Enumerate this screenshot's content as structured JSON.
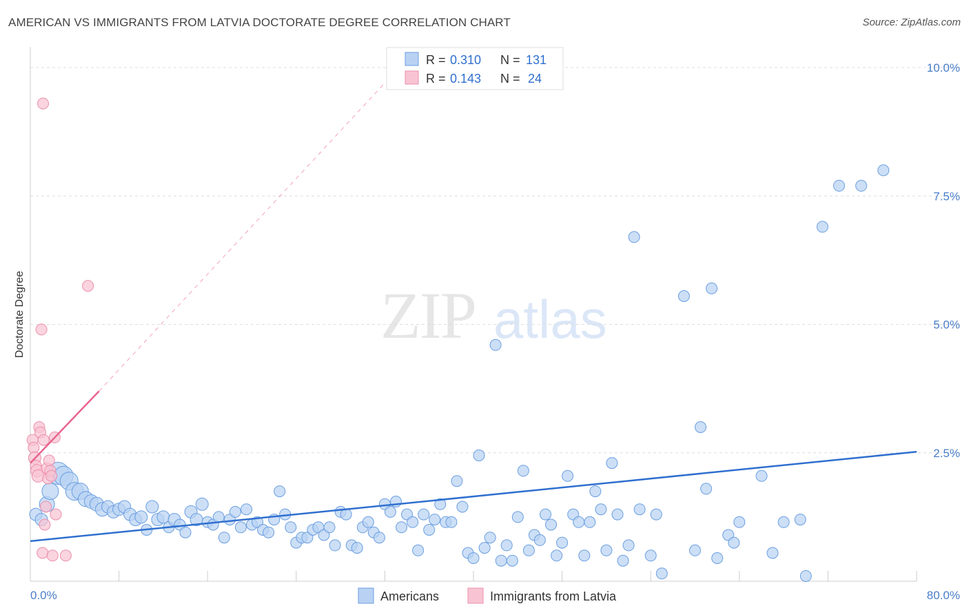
{
  "title": "AMERICAN VS IMMIGRANTS FROM LATVIA DOCTORATE DEGREE CORRELATION CHART",
  "source": "Source: ZipAtlas.com",
  "watermark": {
    "zip": "ZIP",
    "atlas": "atlas"
  },
  "colors": {
    "blue_fill": "#b9d2f3",
    "blue_stroke": "#6b9ee0",
    "blue_line": "#2f6fcf",
    "pink_fill": "#f8c4d3",
    "pink_stroke": "#ec8fab",
    "pink_line": "#e8648e",
    "grid": "#dddddd",
    "tick_text": "#4a7ec9"
  },
  "legend": {
    "rows": [
      {
        "r_label": "R =",
        "r_value": "0.310",
        "n_label": "N =",
        "n_value": "131"
      },
      {
        "r_label": "R =",
        "r_value": "0.143",
        "n_label": "N =",
        "n_value": "24"
      }
    ]
  },
  "chart_data": {
    "type": "scatter",
    "title": "AMERICAN VS IMMIGRANTS FROM LATVIA DOCTORATE DEGREE CORRELATION CHART",
    "xlabel": "",
    "ylabel": "Doctorate Degree",
    "xlim": [
      0,
      80
    ],
    "ylim": [
      0,
      10.4
    ],
    "x_tick_labels": [
      "0.0%",
      "80.0%"
    ],
    "y_ticks": [
      {
        "value": 2.5,
        "label": "2.5%"
      },
      {
        "value": 5.0,
        "label": "5.0%"
      },
      {
        "value": 7.5,
        "label": "7.5%"
      },
      {
        "value": 10.0,
        "label": "10.0%"
      }
    ],
    "series": [
      {
        "name": "Americans",
        "color": "blue",
        "r": 0.31,
        "n": 131,
        "trend": {
          "x0": 0,
          "y0": 0.78,
          "x1": 80,
          "y1": 2.52
        },
        "points": [
          [
            0.5,
            1.3,
            9
          ],
          [
            1,
            1.2,
            9
          ],
          [
            1.5,
            1.5,
            11
          ],
          [
            1.8,
            1.75,
            12
          ],
          [
            2.5,
            2.1,
            16
          ],
          [
            3,
            2.05,
            14
          ],
          [
            3.5,
            1.95,
            13
          ],
          [
            4,
            1.75,
            13
          ],
          [
            4.5,
            1.75,
            12
          ],
          [
            5,
            1.6,
            11
          ],
          [
            5.5,
            1.55,
            10
          ],
          [
            6,
            1.5,
            10
          ],
          [
            6.5,
            1.4,
            10
          ],
          [
            7,
            1.45,
            9
          ],
          [
            7.5,
            1.35,
            9
          ],
          [
            8,
            1.4,
            9
          ],
          [
            8.5,
            1.45,
            9
          ],
          [
            9,
            1.3,
            9
          ],
          [
            9.5,
            1.2,
            9
          ],
          [
            10,
            1.25,
            9
          ],
          [
            10.5,
            1.0,
            8
          ],
          [
            11,
            1.45,
            9
          ],
          [
            11.5,
            1.2,
            9
          ],
          [
            12,
            1.25,
            9
          ],
          [
            12.5,
            1.05,
            8
          ],
          [
            13,
            1.2,
            9
          ],
          [
            13.5,
            1.1,
            8
          ],
          [
            14,
            0.95,
            8
          ],
          [
            14.5,
            1.35,
            9
          ],
          [
            15,
            1.2,
            9
          ],
          [
            15.5,
            1.5,
            9
          ],
          [
            16,
            1.15,
            8
          ],
          [
            16.5,
            1.1,
            8
          ],
          [
            17,
            1.25,
            8
          ],
          [
            17.5,
            0.85,
            8
          ],
          [
            18,
            1.2,
            8
          ],
          [
            18.5,
            1.35,
            8
          ],
          [
            19,
            1.05,
            8
          ],
          [
            19.5,
            1.4,
            8
          ],
          [
            20,
            1.1,
            8
          ],
          [
            20.5,
            1.15,
            8
          ],
          [
            21,
            1.0,
            8
          ],
          [
            21.5,
            0.95,
            8
          ],
          [
            22,
            1.2,
            8
          ],
          [
            22.5,
            1.75,
            8
          ],
          [
            23,
            1.3,
            8
          ],
          [
            23.5,
            1.05,
            8
          ],
          [
            24,
            0.75,
            8
          ],
          [
            24.5,
            0.85,
            8
          ],
          [
            25,
            0.85,
            8
          ],
          [
            25.5,
            1.0,
            8
          ],
          [
            26,
            1.05,
            8
          ],
          [
            26.5,
            0.9,
            8
          ],
          [
            27,
            1.05,
            8
          ],
          [
            27.5,
            0.7,
            8
          ],
          [
            28,
            1.35,
            8
          ],
          [
            28.5,
            1.3,
            8
          ],
          [
            29,
            0.7,
            8
          ],
          [
            29.5,
            0.65,
            8
          ],
          [
            30,
            1.05,
            8
          ],
          [
            30.5,
            1.15,
            8
          ],
          [
            31,
            0.95,
            8
          ],
          [
            31.5,
            0.85,
            8
          ],
          [
            32,
            1.5,
            8
          ],
          [
            32.5,
            1.35,
            8
          ],
          [
            33,
            1.55,
            8
          ],
          [
            33.5,
            1.05,
            8
          ],
          [
            34,
            1.3,
            8
          ],
          [
            34.5,
            1.15,
            8
          ],
          [
            35,
            0.6,
            8
          ],
          [
            35.5,
            1.3,
            8
          ],
          [
            36,
            1.0,
            8
          ],
          [
            36.5,
            1.2,
            8
          ],
          [
            37,
            1.5,
            8
          ],
          [
            37.5,
            1.15,
            8
          ],
          [
            38,
            1.15,
            8
          ],
          [
            38.5,
            1.95,
            8
          ],
          [
            39,
            1.45,
            8
          ],
          [
            39.5,
            0.55,
            8
          ],
          [
            40,
            0.45,
            8
          ],
          [
            40.5,
            2.45,
            8
          ],
          [
            41,
            0.65,
            8
          ],
          [
            41.5,
            0.85,
            8
          ],
          [
            42,
            4.6,
            8
          ],
          [
            42.5,
            0.4,
            8
          ],
          [
            43,
            0.7,
            8
          ],
          [
            43.5,
            0.4,
            8
          ],
          [
            44,
            1.25,
            8
          ],
          [
            44.5,
            2.15,
            8
          ],
          [
            45,
            0.6,
            8
          ],
          [
            45.5,
            0.9,
            8
          ],
          [
            46,
            0.8,
            8
          ],
          [
            46.5,
            1.3,
            8
          ],
          [
            47,
            1.1,
            8
          ],
          [
            47.5,
            0.5,
            8
          ],
          [
            48,
            0.75,
            8
          ],
          [
            48.5,
            2.05,
            8
          ],
          [
            49,
            1.3,
            8
          ],
          [
            49.5,
            1.15,
            8
          ],
          [
            50,
            0.5,
            8
          ],
          [
            50.5,
            1.15,
            8
          ],
          [
            51,
            1.75,
            8
          ],
          [
            51.5,
            1.4,
            8
          ],
          [
            52,
            0.6,
            8
          ],
          [
            52.5,
            2.3,
            8
          ],
          [
            53,
            1.3,
            8
          ],
          [
            53.5,
            0.4,
            8
          ],
          [
            54,
            0.7,
            8
          ],
          [
            54.5,
            6.7,
            8
          ],
          [
            55,
            1.4,
            8
          ],
          [
            56,
            0.5,
            8
          ],
          [
            56.5,
            1.3,
            8
          ],
          [
            57,
            0.15,
            8
          ],
          [
            59,
            5.55,
            8
          ],
          [
            60,
            0.6,
            8
          ],
          [
            60.5,
            3.0,
            8
          ],
          [
            61,
            1.8,
            8
          ],
          [
            61.5,
            5.7,
            8
          ],
          [
            62,
            0.45,
            8
          ],
          [
            63,
            0.9,
            8
          ],
          [
            63.5,
            0.75,
            8
          ],
          [
            64,
            1.15,
            8
          ],
          [
            66,
            2.05,
            8
          ],
          [
            67,
            0.55,
            8
          ],
          [
            68,
            1.15,
            8
          ],
          [
            69.5,
            1.2,
            8
          ],
          [
            70,
            0.1,
            8
          ],
          [
            71.5,
            6.9,
            8
          ],
          [
            73,
            7.7,
            8
          ],
          [
            75,
            7.7,
            8
          ],
          [
            77,
            8.0,
            8
          ]
        ]
      },
      {
        "name": "Immigrants from Latvia",
        "color": "pink",
        "r": 0.143,
        "n": 24,
        "trend": {
          "x0": 0,
          "y0": 2.3,
          "x1": 6.2,
          "y1": 3.7
        },
        "trend_extension": {
          "x0": 6.2,
          "y0": 3.7,
          "x1": 32,
          "y1": 9.7
        },
        "points": [
          [
            0.2,
            2.75,
            8
          ],
          [
            0.3,
            2.6,
            8
          ],
          [
            0.4,
            2.4,
            9
          ],
          [
            0.5,
            2.25,
            8
          ],
          [
            0.6,
            2.15,
            9
          ],
          [
            0.7,
            2.05,
            9
          ],
          [
            0.8,
            3.0,
            8
          ],
          [
            0.9,
            2.9,
            8
          ],
          [
            1.0,
            4.9,
            8
          ],
          [
            1.1,
            0.55,
            8
          ],
          [
            1.2,
            2.75,
            8
          ],
          [
            1.3,
            1.1,
            8
          ],
          [
            1.4,
            1.45,
            8
          ],
          [
            1.5,
            2.2,
            8
          ],
          [
            1.6,
            2.0,
            8
          ],
          [
            1.7,
            2.35,
            8
          ],
          [
            1.8,
            2.15,
            8
          ],
          [
            1.9,
            2.05,
            8
          ],
          [
            2.0,
            0.5,
            8
          ],
          [
            2.2,
            2.8,
            8
          ],
          [
            2.3,
            1.3,
            8
          ],
          [
            1.15,
            9.3,
            8
          ],
          [
            5.2,
            5.75,
            8
          ],
          [
            3.2,
            0.5,
            8
          ]
        ]
      }
    ]
  }
}
